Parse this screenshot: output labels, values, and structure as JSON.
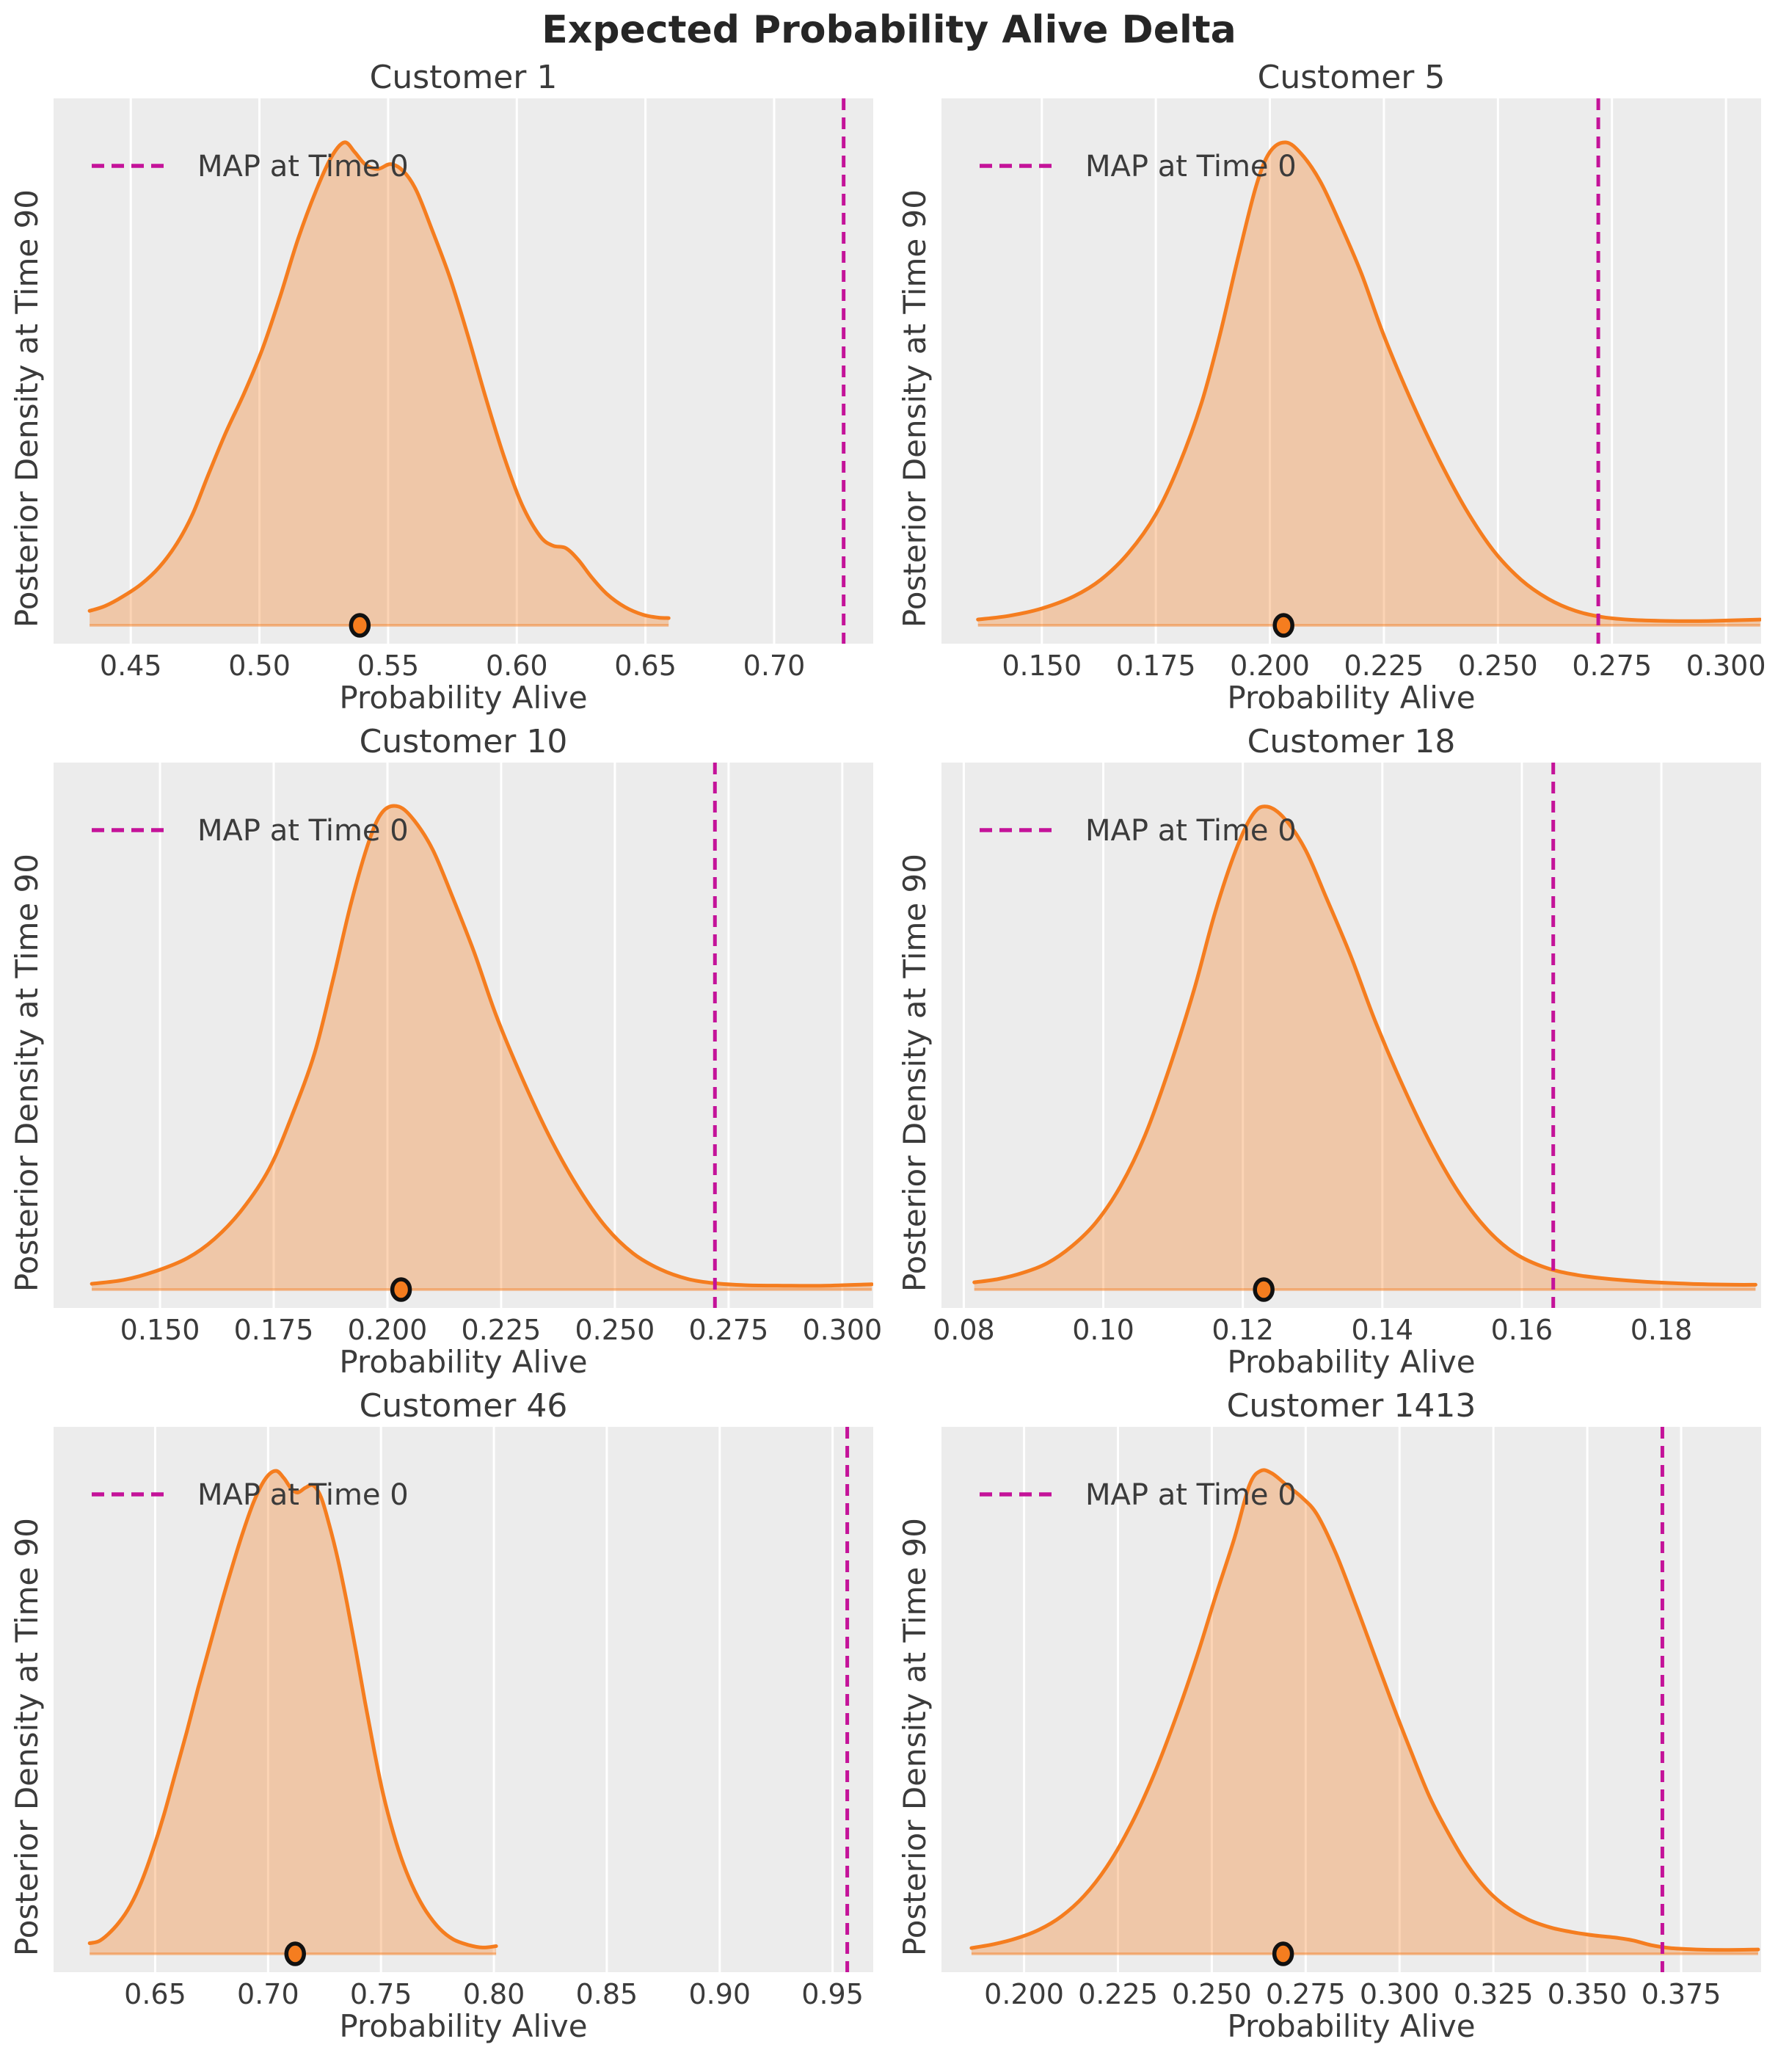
{
  "figure": {
    "title": "Expected Probability Alive Delta",
    "xlabel": "Probability Alive",
    "ylabel": "Posterior Density at Time 90",
    "legend_label": "MAP at Time 0"
  },
  "colors": {
    "axes_background": "#ececec",
    "gridline": "#ffffff",
    "kde_line": "#F57D1F",
    "kde_fill": "rgba(245,125,31,0.33)",
    "kde_baseline": "rgba(245,125,31,0.5)",
    "map_line": "#C41399",
    "dot_fill": "#F57D1F",
    "dot_edge": "#111111",
    "text": "#3b3b3b"
  },
  "chart_data": [
    {
      "type": "area",
      "kind": "kde-density",
      "title": "Customer 1",
      "xlabel": "Probability Alive",
      "ylabel": "Posterior Density at Time 90",
      "xlim": [
        0.42,
        0.7385
      ],
      "x_ticks": [
        0.45,
        0.5,
        0.55,
        0.6,
        0.65,
        0.7
      ],
      "x_tick_labels": [
        "0.45",
        "0.50",
        "0.55",
        "0.60",
        "0.65",
        "0.70"
      ],
      "grid": "vertical-only",
      "legend": [
        "MAP at Time 0"
      ],
      "legend_position": "upper left",
      "map_at_time_0": 0.727,
      "expected_dot_x": 0.539,
      "density_scale": "normalized to peak = 1",
      "kde_x": [
        0.434,
        0.44,
        0.447,
        0.454,
        0.461,
        0.468,
        0.474,
        0.48,
        0.487,
        0.494,
        0.501,
        0.508,
        0.515,
        0.522,
        0.528,
        0.533,
        0.537,
        0.541,
        0.546,
        0.551,
        0.556,
        0.561,
        0.567,
        0.574,
        0.581,
        0.588,
        0.595,
        0.602,
        0.609,
        0.614,
        0.619,
        0.624,
        0.629,
        0.635,
        0.642,
        0.649,
        0.655,
        0.659
      ],
      "kde_density": [
        0.03,
        0.04,
        0.06,
        0.085,
        0.12,
        0.17,
        0.23,
        0.31,
        0.4,
        0.48,
        0.57,
        0.68,
        0.8,
        0.9,
        0.97,
        1.0,
        0.98,
        0.955,
        0.945,
        0.955,
        0.94,
        0.9,
        0.82,
        0.72,
        0.6,
        0.47,
        0.35,
        0.25,
        0.185,
        0.165,
        0.16,
        0.135,
        0.1,
        0.065,
        0.038,
        0.022,
        0.016,
        0.015
      ]
    },
    {
      "type": "area",
      "kind": "kde-density",
      "title": "Customer 5",
      "xlabel": "Probability Alive",
      "ylabel": "Posterior Density at Time 90",
      "xlim": [
        0.128,
        0.3077
      ],
      "x_ticks": [
        0.15,
        0.175,
        0.2,
        0.225,
        0.25,
        0.275,
        0.3
      ],
      "x_tick_labels": [
        "0.150",
        "0.175",
        "0.200",
        "0.225",
        "0.250",
        "0.275",
        "0.300"
      ],
      "grid": "vertical-only",
      "legend": [
        "MAP at Time 0"
      ],
      "legend_position": "upper left",
      "map_at_time_0": 0.272,
      "expected_dot_x": 0.203,
      "density_scale": "normalized to peak = 1",
      "kde_x": [
        0.136,
        0.143,
        0.15,
        0.157,
        0.163,
        0.169,
        0.175,
        0.18,
        0.185,
        0.189,
        0.193,
        0.197,
        0.2,
        0.2035,
        0.207,
        0.211,
        0.215,
        0.22,
        0.225,
        0.231,
        0.237,
        0.243,
        0.249,
        0.255,
        0.261,
        0.267,
        0.273,
        0.28,
        0.288,
        0.296,
        0.3075
      ],
      "kde_density": [
        0.012,
        0.02,
        0.035,
        0.06,
        0.095,
        0.15,
        0.23,
        0.33,
        0.46,
        0.6,
        0.76,
        0.91,
        0.98,
        1.0,
        0.975,
        0.92,
        0.84,
        0.73,
        0.6,
        0.465,
        0.345,
        0.24,
        0.155,
        0.095,
        0.055,
        0.03,
        0.017,
        0.011,
        0.009,
        0.009,
        0.012
      ]
    },
    {
      "type": "area",
      "kind": "kde-density",
      "title": "Customer 10",
      "xlabel": "Probability Alive",
      "ylabel": "Posterior Density at Time 90",
      "xlim": [
        0.1266,
        0.3068
      ],
      "x_ticks": [
        0.15,
        0.175,
        0.2,
        0.225,
        0.25,
        0.275,
        0.3
      ],
      "x_tick_labels": [
        "0.150",
        "0.175",
        "0.200",
        "0.225",
        "0.250",
        "0.275",
        "0.300"
      ],
      "grid": "vertical-only",
      "legend": [
        "MAP at Time 0"
      ],
      "legend_position": "upper left",
      "map_at_time_0": 0.272,
      "expected_dot_x": 0.203,
      "density_scale": "normalized to peak = 1",
      "kde_x": [
        0.135,
        0.142,
        0.149,
        0.156,
        0.162,
        0.168,
        0.174,
        0.179,
        0.184,
        0.188,
        0.192,
        0.196,
        0.199,
        0.2025,
        0.206,
        0.21,
        0.214,
        0.219,
        0.224,
        0.23,
        0.236,
        0.242,
        0.248,
        0.254,
        0.26,
        0.266,
        0.272,
        0.279,
        0.287,
        0.296,
        0.3065
      ],
      "kde_density": [
        0.012,
        0.02,
        0.038,
        0.065,
        0.105,
        0.165,
        0.25,
        0.36,
        0.49,
        0.64,
        0.8,
        0.93,
        0.99,
        1.0,
        0.97,
        0.91,
        0.82,
        0.7,
        0.565,
        0.43,
        0.31,
        0.21,
        0.13,
        0.075,
        0.042,
        0.022,
        0.013,
        0.009,
        0.008,
        0.008,
        0.011
      ]
    },
    {
      "type": "area",
      "kind": "kde-density",
      "title": "Customer 18",
      "xlabel": "Probability Alive",
      "ylabel": "Posterior Density at Time 90",
      "xlim": [
        0.0768,
        0.1943
      ],
      "x_ticks": [
        0.08,
        0.1,
        0.12,
        0.14,
        0.16,
        0.18
      ],
      "x_tick_labels": [
        "0.08",
        "0.10",
        "0.12",
        "0.14",
        "0.16",
        "0.18"
      ],
      "grid": "vertical-only",
      "legend": [
        "MAP at Time 0"
      ],
      "legend_position": "upper left",
      "map_at_time_0": 0.1645,
      "expected_dot_x": 0.123,
      "density_scale": "normalized to peak = 1",
      "kde_x": [
        0.0815,
        0.085,
        0.0885,
        0.092,
        0.0955,
        0.099,
        0.1025,
        0.106,
        0.1095,
        0.113,
        0.116,
        0.119,
        0.1215,
        0.1235,
        0.126,
        0.129,
        0.132,
        0.1355,
        0.139,
        0.143,
        0.147,
        0.151,
        0.155,
        0.159,
        0.1635,
        0.168,
        0.1725,
        0.178,
        0.184,
        0.1905,
        0.1935
      ],
      "kde_density": [
        0.015,
        0.022,
        0.035,
        0.055,
        0.09,
        0.14,
        0.215,
        0.32,
        0.46,
        0.62,
        0.78,
        0.91,
        0.985,
        1.0,
        0.975,
        0.91,
        0.81,
        0.69,
        0.555,
        0.42,
        0.3,
        0.2,
        0.125,
        0.075,
        0.045,
        0.03,
        0.022,
        0.016,
        0.012,
        0.01,
        0.01
      ]
    },
    {
      "type": "area",
      "kind": "kde-density",
      "title": "Customer 46",
      "xlabel": "Probability Alive",
      "ylabel": "Posterior Density at Time 90",
      "xlim": [
        0.605,
        0.968
      ],
      "x_ticks": [
        0.65,
        0.7,
        0.75,
        0.8,
        0.85,
        0.9,
        0.95
      ],
      "x_tick_labels": [
        "0.65",
        "0.70",
        "0.75",
        "0.80",
        "0.85",
        "0.90",
        "0.95"
      ],
      "grid": "vertical-only",
      "legend": [
        "MAP at Time 0"
      ],
      "legend_position": "upper left",
      "map_at_time_0": 0.9565,
      "expected_dot_x": 0.712,
      "density_scale": "normalized to peak = 1",
      "kde_x": [
        0.621,
        0.625,
        0.629,
        0.634,
        0.639,
        0.644,
        0.649,
        0.654,
        0.659,
        0.664,
        0.669,
        0.674,
        0.679,
        0.684,
        0.689,
        0.694,
        0.699,
        0.7035,
        0.707,
        0.71,
        0.713,
        0.7165,
        0.72,
        0.7235,
        0.727,
        0.731,
        0.735,
        0.739,
        0.743,
        0.747,
        0.751,
        0.7555,
        0.76,
        0.765,
        0.77,
        0.776,
        0.782,
        0.789,
        0.795,
        0.801
      ],
      "kde_density": [
        0.022,
        0.026,
        0.04,
        0.065,
        0.1,
        0.15,
        0.215,
        0.29,
        0.375,
        0.46,
        0.55,
        0.635,
        0.72,
        0.8,
        0.875,
        0.94,
        0.985,
        1.0,
        0.985,
        0.965,
        0.955,
        0.965,
        0.97,
        0.945,
        0.89,
        0.815,
        0.725,
        0.625,
        0.52,
        0.42,
        0.33,
        0.25,
        0.185,
        0.13,
        0.088,
        0.052,
        0.03,
        0.018,
        0.013,
        0.016
      ]
    },
    {
      "type": "area",
      "kind": "kde-density",
      "title": "Customer 1413",
      "xlabel": "Probability Alive",
      "ylabel": "Posterior Density at Time 90",
      "xlim": [
        0.178,
        0.3963
      ],
      "x_ticks": [
        0.2,
        0.225,
        0.25,
        0.275,
        0.3,
        0.325,
        0.35,
        0.375
      ],
      "x_tick_labels": [
        "0.200",
        "0.225",
        "0.250",
        "0.275",
        "0.300",
        "0.325",
        "0.350",
        "0.375"
      ],
      "grid": "vertical-only",
      "legend": [
        "MAP at Time 0"
      ],
      "legend_position": "upper left",
      "map_at_time_0": 0.37,
      "expected_dot_x": 0.269,
      "density_scale": "normalized to peak = 1",
      "kde_x": [
        0.186,
        0.192,
        0.198,
        0.204,
        0.21,
        0.216,
        0.222,
        0.228,
        0.234,
        0.24,
        0.246,
        0.251,
        0.256,
        0.26,
        0.263,
        0.266,
        0.27,
        0.274,
        0.278,
        0.283,
        0.288,
        0.293,
        0.298,
        0.303,
        0.308,
        0.313,
        0.318,
        0.323,
        0.328,
        0.334,
        0.34,
        0.346,
        0.352,
        0.357,
        0.362,
        0.367,
        0.372,
        0.379,
        0.387,
        0.3955
      ],
      "kde_density": [
        0.012,
        0.02,
        0.032,
        0.05,
        0.078,
        0.12,
        0.18,
        0.26,
        0.36,
        0.48,
        0.615,
        0.74,
        0.86,
        0.97,
        1.0,
        0.995,
        0.97,
        0.945,
        0.91,
        0.83,
        0.73,
        0.625,
        0.52,
        0.42,
        0.325,
        0.25,
        0.185,
        0.135,
        0.1,
        0.072,
        0.055,
        0.045,
        0.038,
        0.034,
        0.028,
        0.018,
        0.012,
        0.009,
        0.008,
        0.009
      ]
    }
  ]
}
